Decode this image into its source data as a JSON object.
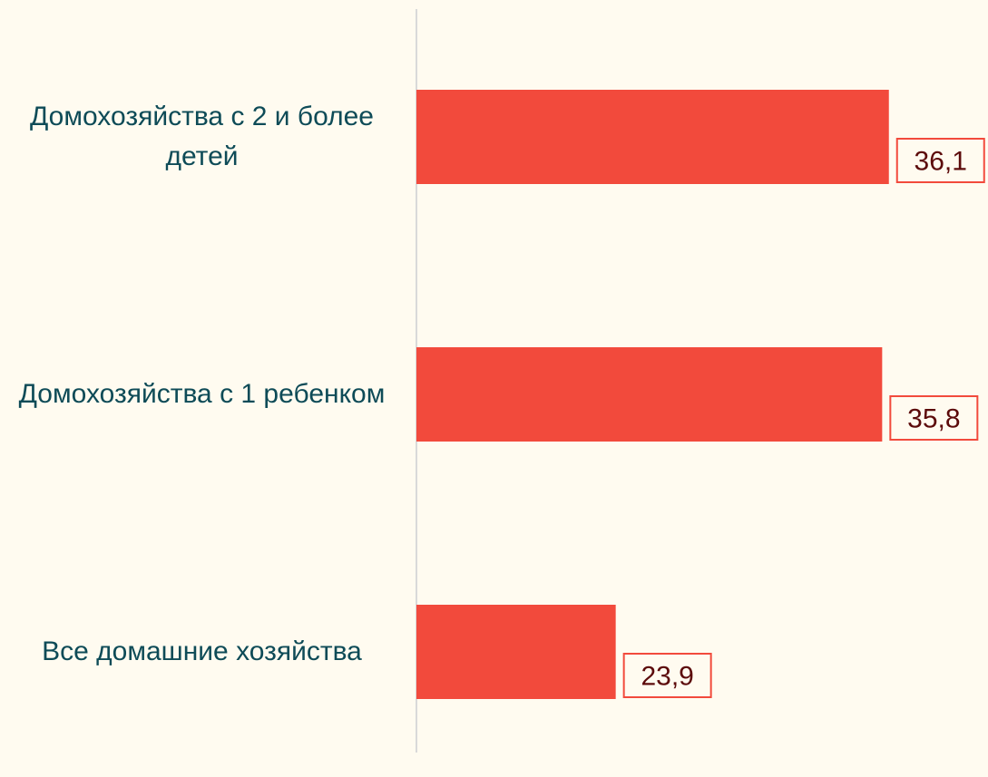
{
  "chart_data": {
    "type": "bar",
    "orientation": "horizontal",
    "categories": [
      "Домохозяйства с 2 и более детей",
      "Домохозяйства с 1 ребенком",
      "Все домашние хозяйства"
    ],
    "values": [
      36.1,
      35.8,
      23.9
    ],
    "value_labels": [
      "36,1",
      "35,8",
      "23,9"
    ],
    "color": "#f24a3c",
    "xlim": [
      15,
      40
    ]
  }
}
